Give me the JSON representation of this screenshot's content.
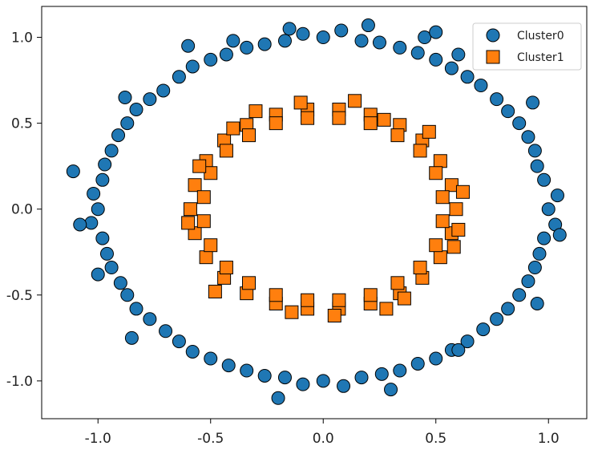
{
  "chart_data": {
    "type": "scatter",
    "title": "",
    "xlabel": "",
    "ylabel": "",
    "xlim": [
      -1.25,
      1.17
    ],
    "ylim": [
      -1.22,
      1.18
    ],
    "x_ticks": [
      -1.0,
      -0.5,
      0.0,
      0.5,
      1.0
    ],
    "x_tick_labels": [
      "-1.0",
      "-0.5",
      "0.0",
      "0.5",
      "1.0"
    ],
    "y_ticks": [
      1.0,
      0.5,
      0.0,
      -0.5,
      -1.0
    ],
    "y_tick_labels": [
      "1.0",
      "0.5",
      "0.0",
      "-0.5",
      "-1.0"
    ],
    "grid": false,
    "legend_position": "top-right",
    "series": [
      {
        "name": "Cluster0",
        "marker": "circle",
        "color": "#1f77b4",
        "points": [
          [
            1.0,
            0.0
          ],
          [
            0.98,
            0.17
          ],
          [
            0.94,
            0.34
          ],
          [
            0.87,
            0.5
          ],
          [
            0.77,
            0.64
          ],
          [
            0.64,
            0.77
          ],
          [
            0.5,
            0.87
          ],
          [
            0.34,
            0.94
          ],
          [
            0.17,
            0.98
          ],
          [
            0.0,
            1.0
          ],
          [
            -0.17,
            0.98
          ],
          [
            -0.34,
            0.94
          ],
          [
            -0.5,
            0.87
          ],
          [
            -0.64,
            0.77
          ],
          [
            -0.77,
            0.64
          ],
          [
            -0.87,
            0.5
          ],
          [
            -0.94,
            0.34
          ],
          [
            -0.98,
            0.17
          ],
          [
            -1.0,
            0.0
          ],
          [
            -0.98,
            -0.17
          ],
          [
            -0.94,
            -0.34
          ],
          [
            -0.87,
            -0.5
          ],
          [
            -0.77,
            -0.64
          ],
          [
            -0.64,
            -0.77
          ],
          [
            -0.5,
            -0.87
          ],
          [
            -0.34,
            -0.94
          ],
          [
            -0.17,
            -0.98
          ],
          [
            0.0,
            -1.0
          ],
          [
            0.17,
            -0.98
          ],
          [
            0.34,
            -0.94
          ],
          [
            0.5,
            -0.87
          ],
          [
            0.64,
            -0.77
          ],
          [
            0.77,
            -0.64
          ],
          [
            0.87,
            -0.5
          ],
          [
            0.94,
            -0.34
          ],
          [
            0.98,
            -0.17
          ],
          [
            1.04,
            0.08
          ],
          [
            0.95,
            0.25
          ],
          [
            0.91,
            0.42
          ],
          [
            0.82,
            0.57
          ],
          [
            0.7,
            0.72
          ],
          [
            0.57,
            0.82
          ],
          [
            0.42,
            0.91
          ],
          [
            0.25,
            0.97
          ],
          [
            0.08,
            1.04
          ],
          [
            -0.09,
            1.02
          ],
          [
            -0.26,
            0.96
          ],
          [
            -0.43,
            0.9
          ],
          [
            -0.58,
            0.83
          ],
          [
            -0.71,
            0.69
          ],
          [
            -0.83,
            0.58
          ],
          [
            -0.91,
            0.43
          ],
          [
            -0.97,
            0.26
          ],
          [
            -1.02,
            0.09
          ],
          [
            -1.03,
            -0.08
          ],
          [
            -0.96,
            -0.26
          ],
          [
            -0.9,
            -0.43
          ],
          [
            -0.83,
            -0.58
          ],
          [
            -0.7,
            -0.71
          ],
          [
            -0.58,
            -0.83
          ],
          [
            -0.42,
            -0.91
          ],
          [
            -0.26,
            -0.97
          ],
          [
            -0.09,
            -1.02
          ],
          [
            0.09,
            -1.03
          ],
          [
            0.26,
            -0.96
          ],
          [
            0.42,
            -0.9
          ],
          [
            0.57,
            -0.82
          ],
          [
            0.71,
            -0.7
          ],
          [
            0.82,
            -0.58
          ],
          [
            0.91,
            -0.42
          ],
          [
            0.96,
            -0.26
          ],
          [
            1.03,
            -0.09
          ],
          [
            -1.11,
            0.22
          ],
          [
            -1.08,
            -0.09
          ],
          [
            0.6,
            0.9
          ],
          [
            0.45,
            1.0
          ],
          [
            0.2,
            1.07
          ],
          [
            -0.15,
            1.05
          ],
          [
            -0.88,
            0.65
          ],
          [
            0.93,
            0.62
          ],
          [
            1.05,
            -0.15
          ],
          [
            0.95,
            -0.55
          ],
          [
            0.3,
            -1.05
          ],
          [
            -0.2,
            -1.1
          ],
          [
            -0.85,
            -0.75
          ],
          [
            -1.0,
            -0.38
          ],
          [
            0.6,
            -0.82
          ],
          [
            0.5,
            1.03
          ],
          [
            -0.6,
            0.95
          ],
          [
            -0.4,
            0.98
          ]
        ]
      },
      {
        "name": "Cluster1",
        "marker": "square",
        "color": "#ff7f0e",
        "points": [
          [
            0.59,
            0.0
          ],
          [
            0.57,
            0.14
          ],
          [
            0.52,
            0.28
          ],
          [
            0.44,
            0.4
          ],
          [
            0.34,
            0.49
          ],
          [
            0.21,
            0.55
          ],
          [
            0.07,
            0.58
          ],
          [
            -0.07,
            0.58
          ],
          [
            -0.21,
            0.55
          ],
          [
            -0.34,
            0.49
          ],
          [
            -0.44,
            0.4
          ],
          [
            -0.52,
            0.28
          ],
          [
            -0.57,
            0.14
          ],
          [
            -0.59,
            0.0
          ],
          [
            -0.57,
            -0.14
          ],
          [
            -0.52,
            -0.28
          ],
          [
            -0.44,
            -0.4
          ],
          [
            -0.34,
            -0.49
          ],
          [
            -0.21,
            -0.55
          ],
          [
            -0.07,
            -0.58
          ],
          [
            0.07,
            -0.58
          ],
          [
            0.21,
            -0.55
          ],
          [
            0.34,
            -0.49
          ],
          [
            0.44,
            -0.4
          ],
          [
            0.52,
            -0.28
          ],
          [
            0.57,
            -0.14
          ],
          [
            0.53,
            0.07
          ],
          [
            0.5,
            0.21
          ],
          [
            0.43,
            0.34
          ],
          [
            0.33,
            0.43
          ],
          [
            0.21,
            0.5
          ],
          [
            0.07,
            0.53
          ],
          [
            -0.07,
            0.53
          ],
          [
            -0.21,
            0.5
          ],
          [
            -0.33,
            0.43
          ],
          [
            -0.43,
            0.34
          ],
          [
            -0.5,
            0.21
          ],
          [
            -0.53,
            0.07
          ],
          [
            -0.53,
            -0.07
          ],
          [
            -0.5,
            -0.21
          ],
          [
            -0.43,
            -0.34
          ],
          [
            -0.33,
            -0.43
          ],
          [
            -0.21,
            -0.5
          ],
          [
            -0.07,
            -0.53
          ],
          [
            0.07,
            -0.53
          ],
          [
            0.21,
            -0.5
          ],
          [
            0.33,
            -0.43
          ],
          [
            0.43,
            -0.34
          ],
          [
            0.5,
            -0.21
          ],
          [
            0.53,
            -0.07
          ],
          [
            0.62,
            0.1
          ],
          [
            0.6,
            -0.12
          ],
          [
            0.58,
            -0.22
          ],
          [
            0.14,
            0.63
          ],
          [
            -0.1,
            0.62
          ],
          [
            -0.3,
            0.57
          ],
          [
            -0.6,
            -0.08
          ],
          [
            -0.48,
            -0.48
          ],
          [
            0.05,
            -0.62
          ],
          [
            0.36,
            -0.52
          ],
          [
            0.47,
            0.45
          ],
          [
            -0.55,
            0.25
          ],
          [
            -0.4,
            0.47
          ],
          [
            0.27,
            0.52
          ],
          [
            -0.14,
            -0.6
          ],
          [
            0.28,
            -0.58
          ]
        ]
      }
    ]
  }
}
